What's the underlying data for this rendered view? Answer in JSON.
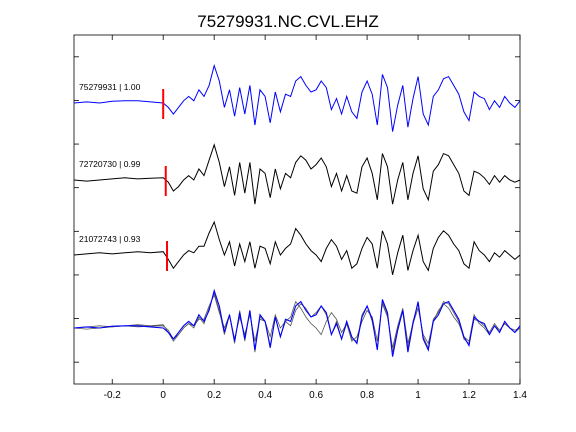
{
  "chart_data": {
    "type": "line",
    "title": "75279931.NC.CVL.EHZ",
    "xlabel": "",
    "ylabel": "",
    "xlim": [
      -0.35,
      1.4
    ],
    "x_ticks": [
      -0.2,
      0,
      0.2,
      0.4,
      0.6,
      0.8,
      1,
      1.2,
      1.4
    ],
    "x_tick_labels": [
      "-0.2",
      "0",
      "0.2",
      "0.4",
      "0.6",
      "0.8",
      "1",
      "1.2",
      "1.4"
    ],
    "y_tick_count": 8,
    "grid": false,
    "pick_time": 0.0,
    "colors": {
      "master": "#0000ff",
      "other": "#000000",
      "pick": "#ff0000",
      "overlay_other": "#555555"
    },
    "series": [
      {
        "label": "75279931 | 1.00",
        "color": "#0000ff",
        "pick_shift": 0.0,
        "x": [
          -0.35,
          -0.3,
          -0.25,
          -0.2,
          -0.15,
          -0.1,
          -0.05,
          0,
          0.02,
          0.04,
          0.06,
          0.08,
          0.1,
          0.12,
          0.14,
          0.16,
          0.18,
          0.2,
          0.22,
          0.24,
          0.26,
          0.28,
          0.3,
          0.32,
          0.34,
          0.36,
          0.38,
          0.4,
          0.42,
          0.44,
          0.46,
          0.48,
          0.5,
          0.52,
          0.54,
          0.56,
          0.58,
          0.6,
          0.62,
          0.64,
          0.66,
          0.68,
          0.7,
          0.72,
          0.74,
          0.76,
          0.78,
          0.8,
          0.82,
          0.84,
          0.86,
          0.88,
          0.9,
          0.92,
          0.94,
          0.96,
          0.98,
          1,
          1.02,
          1.04,
          1.06,
          1.08,
          1.1,
          1.12,
          1.14,
          1.16,
          1.18,
          1.2,
          1.22,
          1.24,
          1.26,
          1.28,
          1.3,
          1.32,
          1.34,
          1.36,
          1.38,
          1.4
        ],
        "y": [
          0,
          0.05,
          0,
          0.08,
          0.1,
          0.1,
          0.05,
          0,
          -0.2,
          -0.5,
          -0.2,
          0.1,
          0.3,
          0.1,
          0.6,
          0.3,
          0.8,
          1.7,
          1.0,
          -0.2,
          0.6,
          -0.6,
          0.7,
          -0.5,
          0.8,
          -1.0,
          0.6,
          0.3,
          -0.9,
          0.5,
          -0.4,
          0.4,
          0.3,
          1.0,
          1.2,
          0.8,
          0.5,
          0.6,
          1.0,
          0.7,
          -0.3,
          0.2,
          -0.5,
          0.3,
          -0.4,
          -0.7,
          0.5,
          1.0,
          0.4,
          -1.0,
          1.3,
          0.7,
          -1.3,
          -0.1,
          0.8,
          -1.1,
          0.2,
          1.2,
          -0.5,
          -1.0,
          0.3,
          0.6,
          1.1,
          1.2,
          0.8,
          0.4,
          -0.4,
          -0.8,
          0.5,
          0.3,
          0.2,
          -0.3,
          0.1,
          -0.2,
          0.3,
          0.0,
          -0.2,
          0.1
        ]
      },
      {
        "label": "72720730 | 0.99",
        "color": "#000000",
        "pick_shift": 0.01,
        "x": [
          -0.35,
          -0.3,
          -0.25,
          -0.2,
          -0.15,
          -0.1,
          -0.05,
          0,
          0.02,
          0.04,
          0.06,
          0.08,
          0.1,
          0.12,
          0.14,
          0.16,
          0.18,
          0.2,
          0.22,
          0.24,
          0.26,
          0.28,
          0.3,
          0.32,
          0.34,
          0.36,
          0.38,
          0.4,
          0.42,
          0.44,
          0.46,
          0.48,
          0.5,
          0.52,
          0.54,
          0.56,
          0.58,
          0.6,
          0.62,
          0.64,
          0.66,
          0.68,
          0.7,
          0.72,
          0.74,
          0.76,
          0.78,
          0.8,
          0.82,
          0.84,
          0.86,
          0.88,
          0.9,
          0.92,
          0.94,
          0.96,
          0.98,
          1,
          1.02,
          1.04,
          1.06,
          1.08,
          1.1,
          1.12,
          1.14,
          1.16,
          1.18,
          1.2,
          1.22,
          1.24,
          1.26,
          1.28,
          1.3,
          1.32,
          1.34,
          1.36,
          1.38,
          1.4
        ],
        "y": [
          0,
          -0.05,
          0,
          0.05,
          0.1,
          0.05,
          0.08,
          0.1,
          -0.1,
          -0.5,
          -0.3,
          0.0,
          0.2,
          0.0,
          0.5,
          0.2,
          0.9,
          1.6,
          0.8,
          -0.3,
          0.6,
          -0.7,
          0.8,
          -0.6,
          0.8,
          -1.1,
          0.5,
          0.3,
          -0.8,
          0.5,
          -0.4,
          0.3,
          0.1,
          0.8,
          1.1,
          0.9,
          0.5,
          0.7,
          1.0,
          0.6,
          -0.3,
          0.3,
          -0.5,
          0.2,
          -0.5,
          -0.6,
          0.6,
          1.0,
          0.3,
          -0.9,
          1.2,
          0.6,
          -1.1,
          0.0,
          0.8,
          -0.9,
          0.3,
          1.1,
          -0.4,
          -0.9,
          0.4,
          0.7,
          1.2,
          1.1,
          0.7,
          0.3,
          -0.5,
          -0.7,
          0.4,
          0.3,
          0.1,
          -0.2,
          0.2,
          -0.1,
          0.2,
          0.0,
          -0.1,
          0.0
        ]
      },
      {
        "label": "21072743 | 0.93",
        "color": "#000000",
        "pick_shift": 0.015,
        "x": [
          -0.35,
          -0.3,
          -0.25,
          -0.2,
          -0.15,
          -0.1,
          -0.05,
          0,
          0.02,
          0.04,
          0.06,
          0.08,
          0.1,
          0.12,
          0.14,
          0.16,
          0.18,
          0.2,
          0.22,
          0.24,
          0.26,
          0.28,
          0.3,
          0.32,
          0.34,
          0.36,
          0.38,
          0.4,
          0.42,
          0.44,
          0.46,
          0.48,
          0.5,
          0.52,
          0.54,
          0.56,
          0.58,
          0.6,
          0.62,
          0.64,
          0.66,
          0.68,
          0.7,
          0.72,
          0.74,
          0.76,
          0.78,
          0.8,
          0.82,
          0.84,
          0.86,
          0.88,
          0.9,
          0.92,
          0.94,
          0.96,
          0.98,
          1,
          1.02,
          1.04,
          1.06,
          1.08,
          1.1,
          1.12,
          1.14,
          1.16,
          1.18,
          1.2,
          1.22,
          1.24,
          1.26,
          1.28,
          1.3,
          1.32,
          1.34,
          1.36,
          1.38,
          1.4
        ],
        "y": [
          0,
          0.05,
          0.1,
          0.05,
          0.1,
          0.15,
          0.1,
          0.15,
          -0.2,
          -0.6,
          -0.3,
          0.0,
          0.2,
          0.1,
          0.4,
          0.4,
          1.0,
          1.5,
          0.7,
          0.0,
          0.6,
          -0.5,
          0.5,
          -0.3,
          0.6,
          -0.6,
          0.4,
          0.3,
          -0.4,
          0.6,
          0.0,
          0.3,
          0.5,
          1.2,
          0.9,
          0.5,
          0.2,
          0.0,
          -0.3,
          0.3,
          0.7,
          0.4,
          -0.2,
          0.2,
          -0.6,
          -0.4,
          0.3,
          0.8,
          0.5,
          -0.6,
          1.1,
          0.5,
          -0.9,
          0.1,
          0.9,
          -0.7,
          0.2,
          0.9,
          -0.3,
          -0.7,
          0.3,
          0.8,
          1.1,
          0.9,
          0.5,
          0.2,
          -0.4,
          -0.6,
          0.6,
          0.2,
          0.0,
          -0.3,
          0.1,
          -0.1,
          0.2,
          0.0,
          -0.2,
          0.0
        ]
      }
    ]
  }
}
